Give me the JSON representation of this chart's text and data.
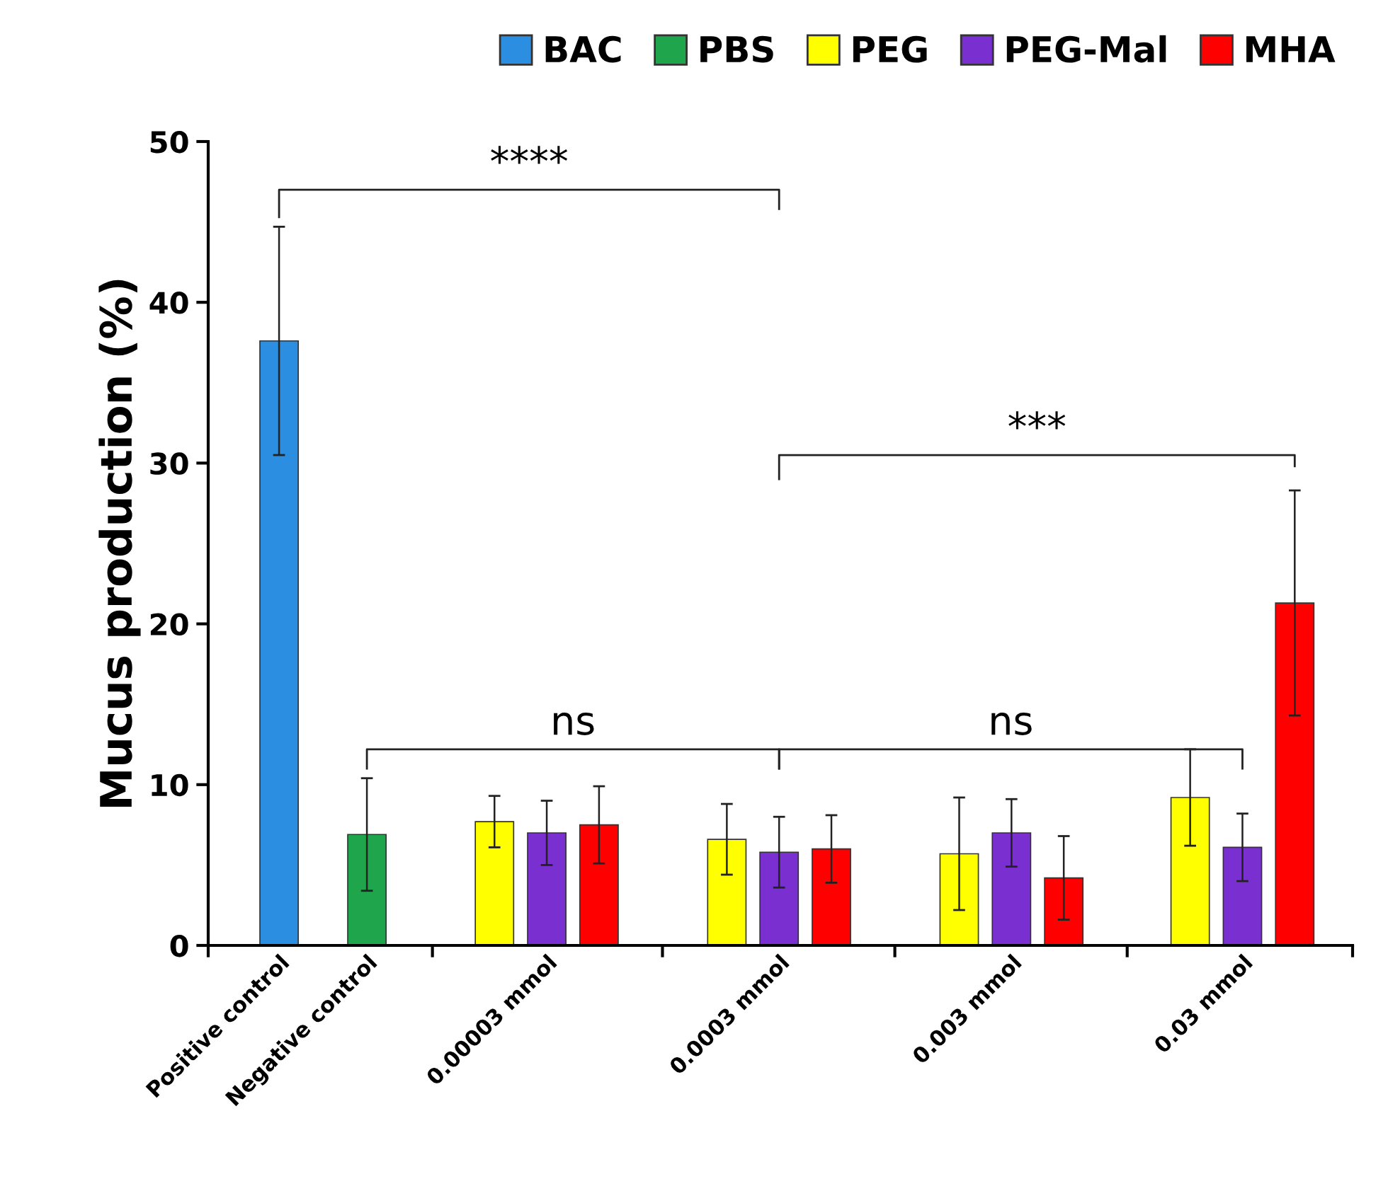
{
  "chart_data": {
    "type": "bar",
    "ylabel": "Mucus production (%)",
    "categories": [
      "Positive control",
      "Negative control",
      "0.00003 mmol",
      "0.0003 mmol",
      "0.003 mmol",
      "0.03 mmol"
    ],
    "series": [
      {
        "name": "BAC",
        "color": "#2b8ee0",
        "values": [
          37.6,
          null,
          null,
          null,
          null,
          null
        ],
        "errors": [
          7.1,
          null,
          null,
          null,
          null,
          null
        ]
      },
      {
        "name": "PBS",
        "color": "#1fa64c",
        "values": [
          null,
          6.9,
          null,
          null,
          null,
          null
        ],
        "errors": [
          null,
          3.5,
          null,
          null,
          null,
          null
        ]
      },
      {
        "name": "PEG",
        "color": "#ffff00",
        "values": [
          null,
          null,
          7.7,
          6.6,
          5.7,
          9.2
        ],
        "errors": [
          null,
          null,
          1.6,
          2.2,
          3.5,
          3.0
        ]
      },
      {
        "name": "PEG-Mal",
        "color": "#7a2fd0",
        "values": [
          null,
          null,
          7.0,
          5.8,
          7.0,
          6.1
        ],
        "errors": [
          null,
          null,
          2.0,
          2.2,
          2.1,
          2.1
        ]
      },
      {
        "name": "MHA",
        "color": "#ff0000",
        "values": [
          null,
          null,
          7.5,
          6.0,
          4.2,
          21.3
        ],
        "errors": [
          null,
          null,
          2.4,
          2.1,
          2.6,
          7.0
        ]
      }
    ],
    "ylim": [
      0,
      50
    ],
    "yticks": [
      0,
      10,
      20,
      30,
      40,
      50
    ],
    "grid": false,
    "legend": "top",
    "annotations": [
      "****",
      "***",
      "ns",
      "ns"
    ]
  }
}
